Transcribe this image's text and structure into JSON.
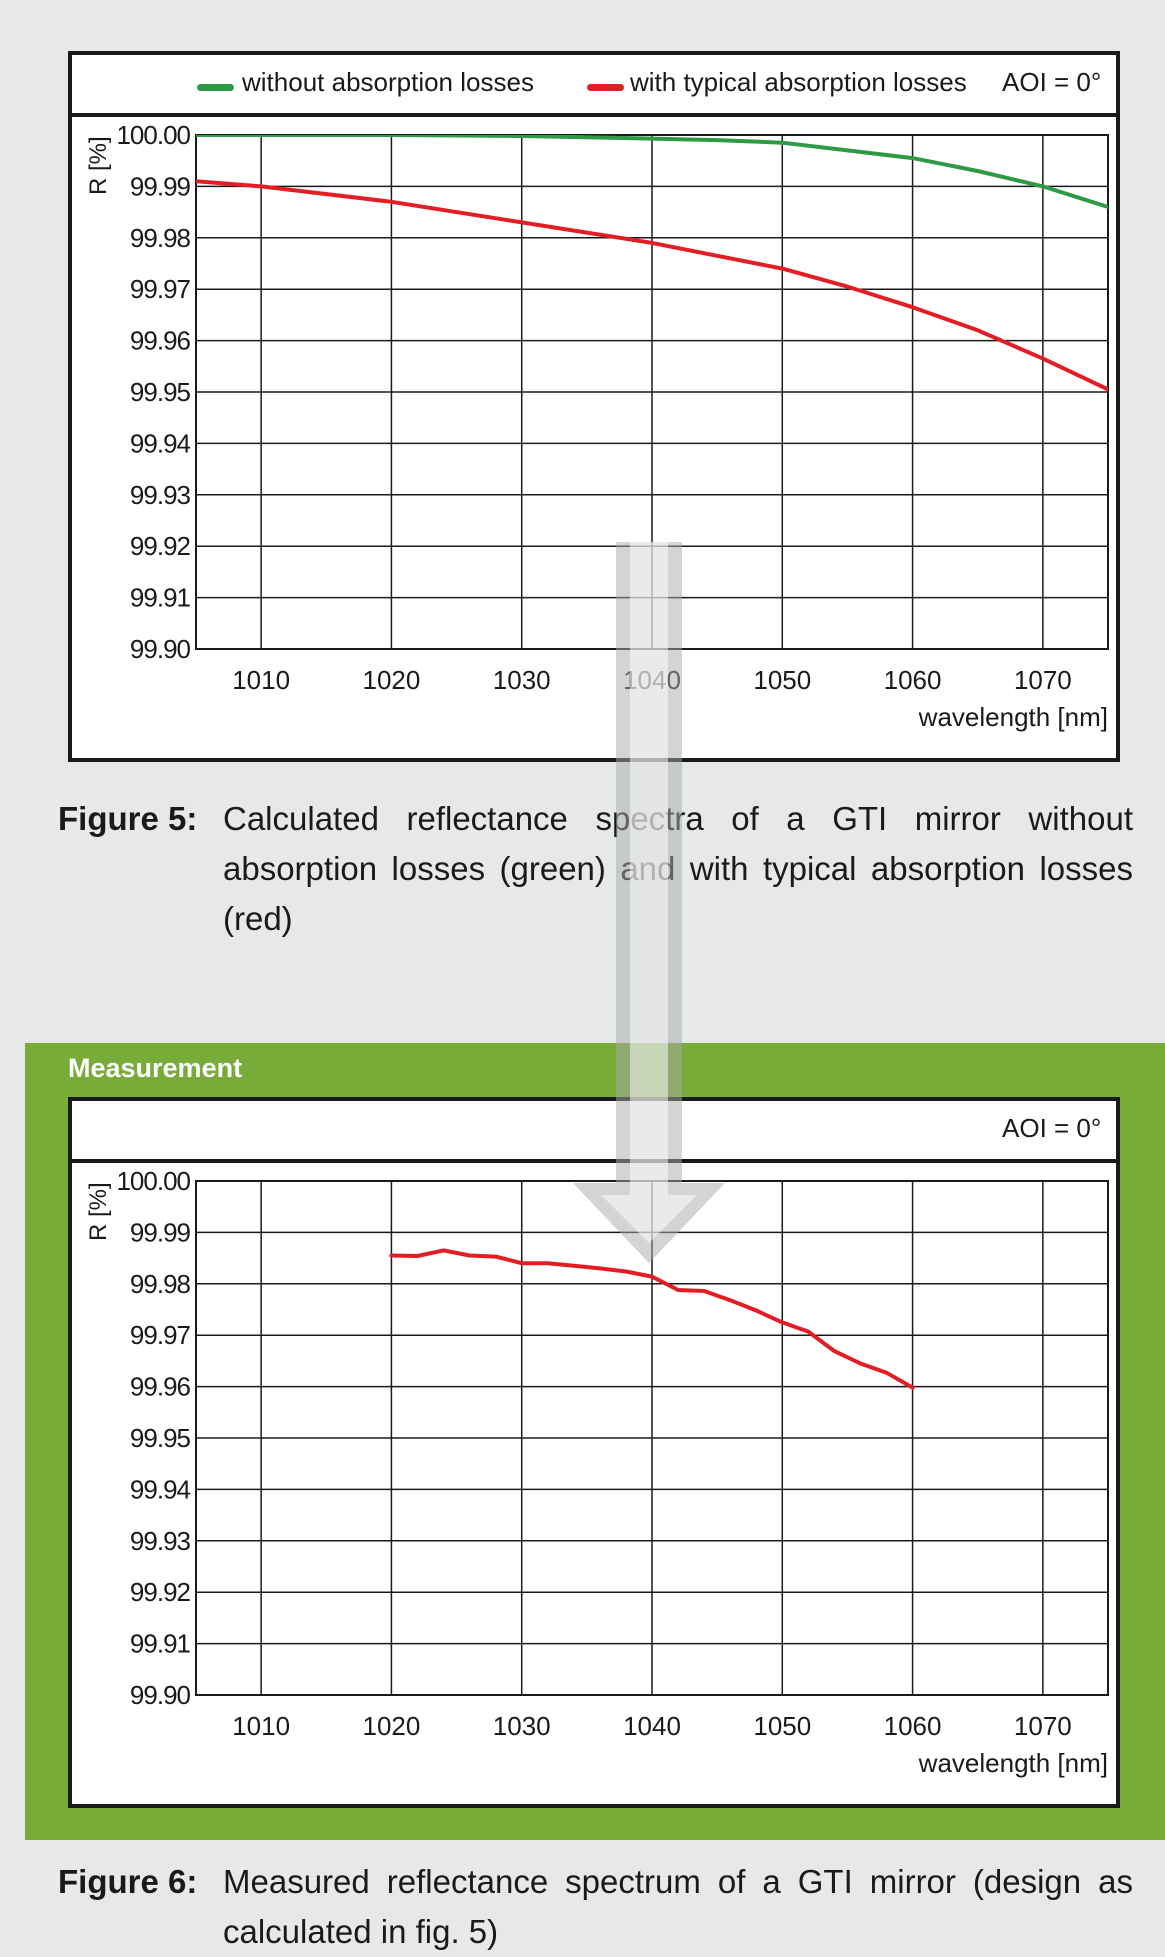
{
  "chart_data": [
    {
      "type": "line",
      "legend": [
        {
          "label": "without absorption losses",
          "color": "#2e9a46"
        },
        {
          "label": "with typical absorption losses",
          "color": "#e21d24"
        }
      ],
      "aoi": "AOI = 0°",
      "ylabel": "R [%]",
      "xlabel": "wavelength [nm]",
      "xlim": [
        1005,
        1075
      ],
      "ylim": [
        99.9,
        100.0
      ],
      "xticks": [
        "1010",
        "1020",
        "1030",
        "1040",
        "1050",
        "1060",
        "1070"
      ],
      "xtick_values": [
        1010,
        1020,
        1030,
        1040,
        1050,
        1060,
        1070
      ],
      "yticks": [
        "100.00",
        "99.99",
        "99.98",
        "99.97",
        "99.96",
        "99.95",
        "99.94",
        "99.93",
        "99.92",
        "99.91",
        "99.90"
      ],
      "ytick_values": [
        100.0,
        99.99,
        99.98,
        99.97,
        99.96,
        99.95,
        99.94,
        99.93,
        99.92,
        99.91,
        99.9
      ],
      "grid": true,
      "series": [
        {
          "name": "without absorption losses",
          "color": "#2e9a46",
          "x": [
            1005,
            1010,
            1020,
            1030,
            1040,
            1045,
            1050,
            1055,
            1060,
            1065,
            1070,
            1075
          ],
          "y": [
            100.0,
            100.0,
            100.0,
            99.9998,
            99.9993,
            99.999,
            99.9985,
            99.997,
            99.9955,
            99.993,
            99.99,
            99.986
          ]
        },
        {
          "name": "with typical absorption losses",
          "color": "#e21d24",
          "x": [
            1005,
            1010,
            1020,
            1030,
            1040,
            1045,
            1050,
            1055,
            1060,
            1065,
            1070,
            1075
          ],
          "y": [
            99.991,
            99.99,
            99.987,
            99.983,
            99.979,
            99.9765,
            99.974,
            99.9705,
            99.9665,
            99.962,
            99.9565,
            99.9505
          ]
        }
      ],
      "caption": {
        "label": "Figure 5:",
        "text": "Calculated reflectance spectra of a GTI mirror without absorption losses (green) and with typical absorption losses (red)"
      }
    },
    {
      "type": "line",
      "section_label": "Measurement",
      "aoi": "AOI = 0°",
      "ylabel": "R [%]",
      "xlabel": "wavelength [nm]",
      "xlim": [
        1005,
        1075
      ],
      "ylim": [
        99.9,
        100.0
      ],
      "xticks": [
        "1010",
        "1020",
        "1030",
        "1040",
        "1050",
        "1060",
        "1070"
      ],
      "xtick_values": [
        1010,
        1020,
        1030,
        1040,
        1050,
        1060,
        1070
      ],
      "yticks": [
        "100.00",
        "99.99",
        "99.98",
        "99.97",
        "99.96",
        "99.95",
        "99.94",
        "99.93",
        "99.92",
        "99.91",
        "99.90"
      ],
      "ytick_values": [
        100.0,
        99.99,
        99.98,
        99.97,
        99.96,
        99.95,
        99.94,
        99.93,
        99.92,
        99.91,
        99.9
      ],
      "grid": true,
      "series": [
        {
          "color": "#e21d24",
          "x": [
            1020,
            1022,
            1024,
            1026,
            1028,
            1030,
            1032,
            1034,
            1036,
            1038,
            1040,
            1042,
            1044,
            1046,
            1048,
            1050,
            1052,
            1054,
            1056,
            1058,
            1060
          ],
          "y": [
            99.9855,
            99.9854,
            99.9865,
            99.9855,
            99.9853,
            99.984,
            99.984,
            99.9835,
            99.983,
            99.9824,
            99.9814,
            99.9788,
            99.9786,
            99.9768,
            99.9748,
            99.9725,
            99.9707,
            99.9669,
            99.9645,
            99.9627,
            99.9598
          ]
        }
      ],
      "caption": {
        "label": "Figure 6:",
        "text": "Measured reflectance spectrum of a GTI mirror (design as calculated in fig. 5)"
      }
    }
  ]
}
